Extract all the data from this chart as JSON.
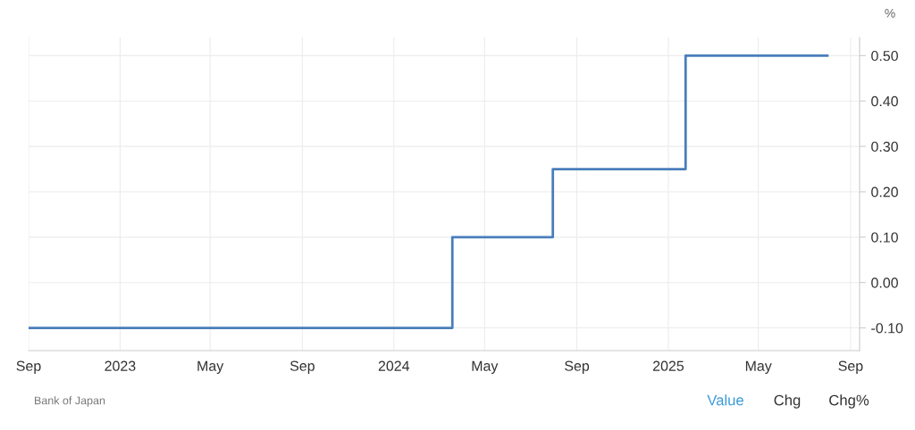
{
  "chart_data": {
    "type": "step",
    "ylabel": "%",
    "x": [
      "2022-09-01",
      "2024-03-19",
      "2024-07-31",
      "2025-01-24",
      "2025-08-01"
    ],
    "series": [
      {
        "color": "#4a7ebb",
        "values": [
          -0.1,
          0.1,
          0.25,
          0.5,
          0.5
        ]
      }
    ],
    "xlim": [
      "2022-09-01",
      "2025-09-13"
    ],
    "xticks": [
      {
        "value": "2022-09-01",
        "label": "Sep"
      },
      {
        "value": "2023-01-01",
        "label": "2023"
      },
      {
        "value": "2023-05-01",
        "label": "May"
      },
      {
        "value": "2023-09-01",
        "label": "Sep"
      },
      {
        "value": "2024-01-01",
        "label": "2024"
      },
      {
        "value": "2024-05-01",
        "label": "May"
      },
      {
        "value": "2024-09-01",
        "label": "Sep"
      },
      {
        "value": "2025-01-01",
        "label": "2025"
      },
      {
        "value": "2025-05-01",
        "label": "May"
      },
      {
        "value": "2025-09-01",
        "label": "Sep"
      }
    ],
    "ylim": [
      -0.15,
      0.54
    ],
    "yticks": [
      {
        "value": -0.1,
        "label": "-0.10"
      },
      {
        "value": 0.0,
        "label": "0.00"
      },
      {
        "value": 0.1,
        "label": "0.10"
      },
      {
        "value": 0.2,
        "label": "0.20"
      },
      {
        "value": 0.3,
        "label": "0.30"
      },
      {
        "value": 0.4,
        "label": "0.40"
      },
      {
        "value": 0.5,
        "label": "0.50"
      }
    ],
    "grid": true,
    "line_style": "solid",
    "marker": "none",
    "annotations": [
      "Bank of Japan",
      "Value",
      "Chg",
      "Chg%"
    ]
  }
}
